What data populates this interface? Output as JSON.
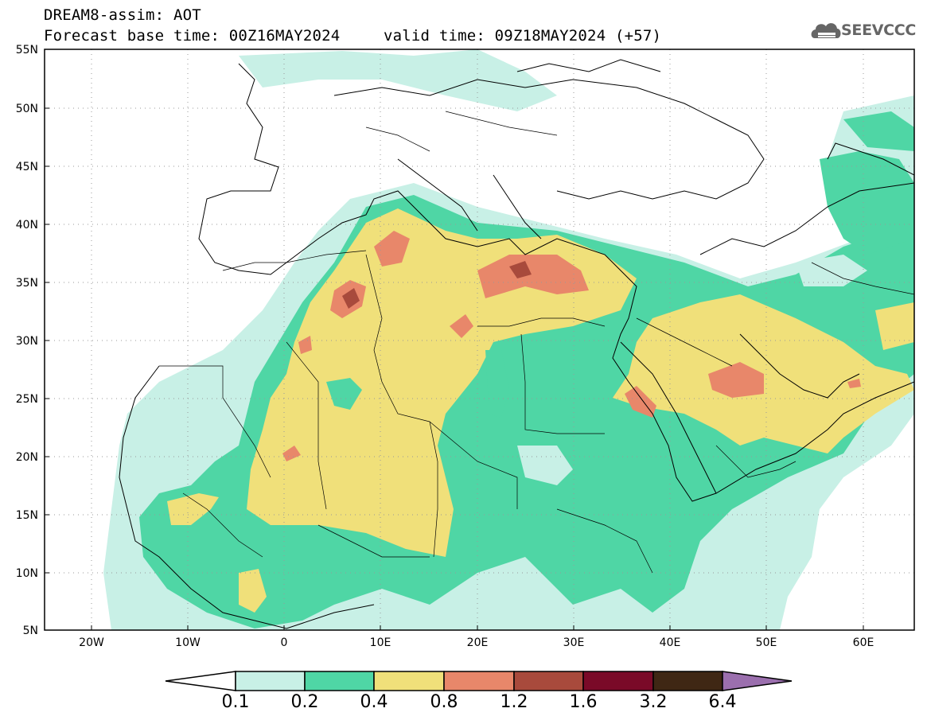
{
  "header": {
    "title": "DREAM8-assim: AOT",
    "base_time": "Forecast base time: 00Z16MAY2024",
    "valid_time": "valid time: 09Z18MAY2024 (+57)",
    "logo_text": "SEEVCCC"
  },
  "map": {
    "variable": "AOT",
    "extent": {
      "lon": [
        -25,
        65
      ],
      "lat": [
        5,
        55
      ]
    },
    "lat_ticks": [
      "55N",
      "50N",
      "45N",
      "40N",
      "35N",
      "30N",
      "25N",
      "20N",
      "15N",
      "10N",
      "5N"
    ],
    "lon_ticks": [
      "20W",
      "10W",
      "0",
      "10E",
      "20E",
      "30E",
      "40E",
      "50E",
      "60E"
    ]
  },
  "colorbar": {
    "labels": [
      "0.1",
      "0.2",
      "0.4",
      "0.8",
      "1.2",
      "1.6",
      "3.2",
      "6.4"
    ],
    "colors": [
      "#c8f0e6",
      "#4fd6a5",
      "#f0e07a",
      "#e8876a",
      "#a84a3c",
      "#7a0a28",
      "#3f2714",
      "#9b6fae"
    ],
    "under_color": "#ffffff"
  }
}
